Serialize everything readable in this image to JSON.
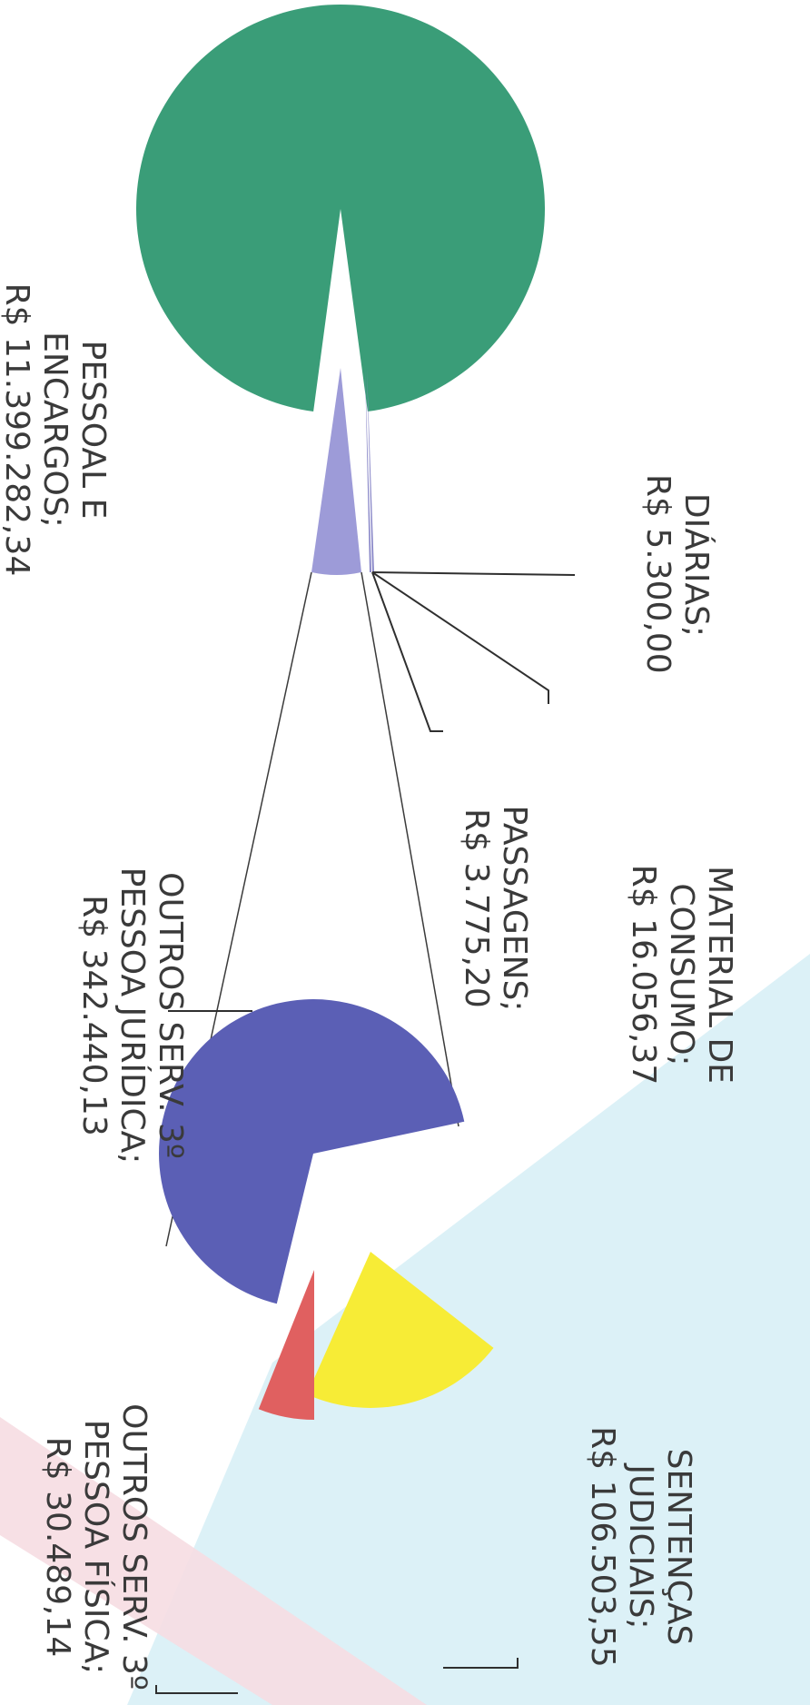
{
  "chart_data": {
    "type": "pie",
    "orientation": "rotated 90deg clockwise",
    "colors": {
      "pessoal": "#3a9d78",
      "diarias": "#9d9bd8",
      "material": "#8a88c8",
      "passagens": "#8a88c8",
      "pj": "#5b5fb5",
      "sentencas": "#f7ec36",
      "pf": "#e06060",
      "background_blue": "#d6eef6",
      "background_pink": "#f6dde2"
    },
    "slices": [
      {
        "key": "pessoal",
        "label": [
          "PESSOAL E",
          "ENCARGOS;",
          "R$ 11.399.282,34"
        ],
        "value": 11399282.34
      },
      {
        "key": "diarias",
        "label": [
          "DIÁRIAS;",
          "R$ 5.300,00"
        ],
        "value": 5300.0
      },
      {
        "key": "material",
        "label": [
          "MATERIAL DE",
          "CONSUMO;",
          "R$ 16.056,37"
        ],
        "value": 16056.37
      },
      {
        "key": "passagens",
        "label": [
          "PASSAGENS;",
          "R$ 3.775,20"
        ],
        "value": 3775.2
      },
      {
        "key": "pj",
        "label": [
          "OUTROS SERV. 3º",
          "PESSOA JURÍDICA;",
          "R$ 342.440,13"
        ],
        "value": 342440.13
      },
      {
        "key": "sentencas",
        "label": [
          "SENTENÇAS",
          "JUDICIAIS;",
          "R$ 106.503,55"
        ],
        "value": 106503.55
      },
      {
        "key": "pf",
        "label": [
          "OUTROS SERV. 3º",
          "PESSOA FÍSICA;",
          "R$ 30.489,14"
        ],
        "value": 30489.14
      }
    ]
  }
}
